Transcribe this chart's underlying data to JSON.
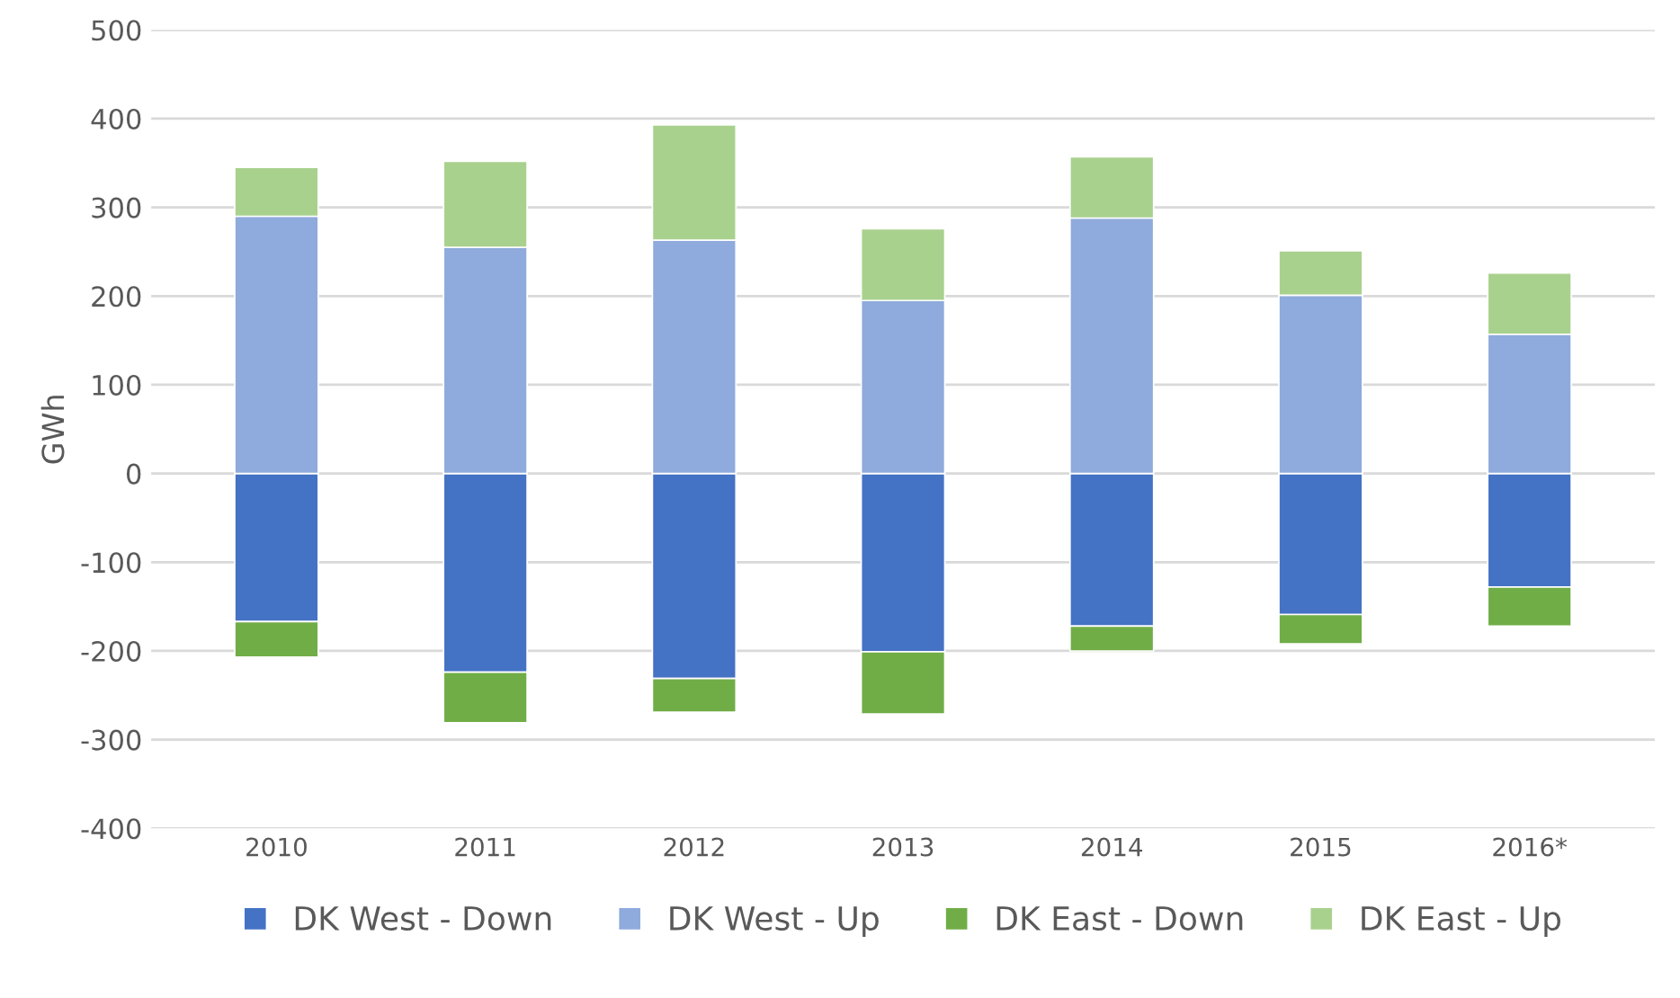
{
  "chart_data": {
    "type": "bar",
    "stacked": true,
    "ylabel": "GWh",
    "categories": [
      "2010",
      "2011",
      "2012",
      "2013",
      "2014",
      "2015",
      "2016*"
    ],
    "series": [
      {
        "name": "DK West - Down",
        "color": "#4472c4",
        "values": [
          -167,
          -224,
          -231,
          -201,
          -172,
          -159,
          -128
        ]
      },
      {
        "name": "DK West - Up",
        "color": "#8faadc",
        "values": [
          290,
          255,
          263,
          195,
          288,
          201,
          157
        ]
      },
      {
        "name": "DK East - Down",
        "color": "#70ad47",
        "values": [
          -40,
          -57,
          -38,
          -70,
          -28,
          -33,
          -44
        ]
      },
      {
        "name": "DK East - Up",
        "color": "#a9d18e",
        "values": [
          55,
          97,
          130,
          81,
          69,
          50,
          69
        ]
      }
    ],
    "ylim": [
      -400,
      500
    ],
    "yticks": [
      -400,
      -300,
      -200,
      -100,
      0,
      100,
      200,
      300,
      400,
      500
    ],
    "grid": "y",
    "legend": "bottom"
  }
}
